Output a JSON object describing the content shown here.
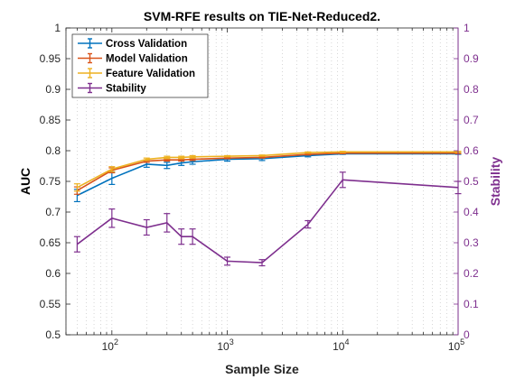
{
  "chart_data": {
    "type": "line",
    "title": "SVM-RFE results on TIE-Net-Reduced2.",
    "xlabel": "Sample Size",
    "ylabel": "AUC",
    "y2label": "Stability",
    "xscale": "log",
    "xlim": [
      40,
      100000
    ],
    "ylim": [
      0.5,
      1
    ],
    "y2lim": [
      0,
      1
    ],
    "grid": "x-minor-dotted",
    "legend_position": "top-left",
    "xticks": [
      {
        "value": 100,
        "base": "10",
        "exp": "2"
      },
      {
        "value": 1000,
        "base": "10",
        "exp": "3"
      },
      {
        "value": 10000,
        "base": "10",
        "exp": "4"
      },
      {
        "value": 100000,
        "base": "10",
        "exp": "5"
      }
    ],
    "yticks": [
      "0.5",
      "0.55",
      "0.6",
      "0.65",
      "0.7",
      "0.75",
      "0.8",
      "0.85",
      "0.9",
      "0.95",
      "1"
    ],
    "y2ticks": [
      "0",
      "0.1",
      "0.2",
      "0.3",
      "0.4",
      "0.5",
      "0.6",
      "0.7",
      "0.8",
      "0.9",
      "1"
    ],
    "x": [
      50,
      100,
      200,
      300,
      400,
      500,
      1000,
      2000,
      5000,
      10000,
      100000
    ],
    "series": [
      {
        "name": "Cross Validation",
        "color": "#0072BD",
        "axis": "left",
        "values": [
          0.727,
          0.755,
          0.778,
          0.776,
          0.78,
          0.782,
          0.786,
          0.787,
          0.792,
          0.795,
          0.795
        ],
        "errors": [
          0.01,
          0.01,
          0.005,
          0.005,
          0.004,
          0.004,
          0.003,
          0.003,
          0.002,
          0.001,
          0.001
        ]
      },
      {
        "name": "Model Validation",
        "color": "#D95319",
        "axis": "left",
        "values": [
          0.735,
          0.768,
          0.783,
          0.785,
          0.785,
          0.786,
          0.788,
          0.789,
          0.794,
          0.796,
          0.796
        ],
        "errors": [
          0.006,
          0.004,
          0.002,
          0.002,
          0.002,
          0.002,
          0.001,
          0.001,
          0.001,
          0.001,
          0.001
        ]
      },
      {
        "name": "Feature Validation",
        "color": "#EDB120",
        "axis": "left",
        "values": [
          0.74,
          0.77,
          0.786,
          0.789,
          0.789,
          0.79,
          0.791,
          0.792,
          0.797,
          0.798,
          0.798
        ],
        "errors": [
          0.006,
          0.004,
          0.002,
          0.002,
          0.002,
          0.002,
          0.001,
          0.001,
          0.001,
          0.001,
          0.001
        ]
      },
      {
        "name": "Stability",
        "color": "#7E2F8E",
        "axis": "right",
        "values": [
          0.295,
          0.38,
          0.35,
          0.365,
          0.32,
          0.32,
          0.24,
          0.235,
          0.36,
          0.505,
          0.48
        ],
        "errors": [
          0.025,
          0.03,
          0.025,
          0.03,
          0.025,
          0.025,
          0.013,
          0.01,
          0.012,
          0.025,
          0.02
        ]
      }
    ]
  }
}
